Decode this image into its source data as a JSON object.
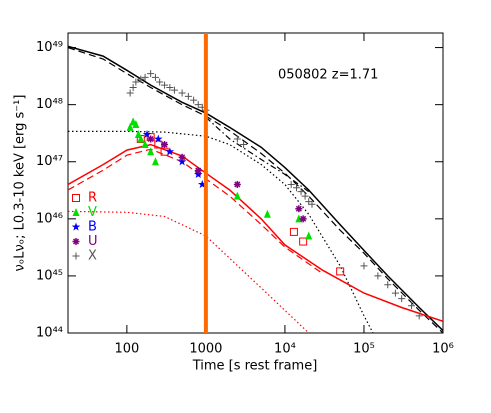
{
  "chart_data": {
    "type": "scatter",
    "xlog": true,
    "ylog": true,
    "xlabel": "Time [s rest frame]",
    "ylabel": "νₒLνₒ;  L0.3-10 keV [erg s⁻¹]",
    "annotation": "050802   z=1.71",
    "xlim": [
      18,
      1000000
    ],
    "ylim": [
      1e+44,
      1.8e+49
    ],
    "xticks": [
      100,
      1000,
      {
        "value": 10000,
        "label": "10⁴"
      },
      {
        "value": 100000,
        "label": "10⁵"
      },
      {
        "value": 1000000,
        "label": "10⁶"
      }
    ],
    "yticks": [
      {
        "value": 1e+44,
        "label": "10⁴⁴"
      },
      {
        "value": 1e+45,
        "label": "10⁴⁵"
      },
      {
        "value": 1e+46,
        "label": "10⁴⁶"
      },
      {
        "value": 1e+47,
        "label": "10⁴⁷"
      },
      {
        "value": 1e+48,
        "label": "10⁴⁸"
      },
      {
        "value": 1e+49,
        "label": "10⁴⁹"
      }
    ],
    "vline": {
      "x": 1000,
      "color": "#ff6a00"
    },
    "series": [
      {
        "name": "R",
        "color": "#ff0000",
        "marker": "square",
        "x": [
          150,
          200,
          250,
          300,
          13000,
          17000,
          50000
        ],
        "values": [
          2.5e+47,
          2.7e+47,
          2e+47,
          1.5e+47,
          5.9e+45,
          4e+45,
          1.2e+45
        ]
      },
      {
        "name": "V",
        "color": "#00e000",
        "marker": "triangle",
        "x": [
          110,
          120,
          130,
          140,
          150,
          170,
          200,
          230,
          2500,
          6000,
          15000,
          20000
        ],
        "values": [
          4e+47,
          5e+47,
          4.5e+47,
          3e+47,
          2.5e+47,
          2e+47,
          1.5e+47,
          1e+47,
          2.5e+46,
          1.2e+46,
          1e+46,
          5e+45
        ]
      },
      {
        "name": "B",
        "color": "#0000ff",
        "marker": "star",
        "x": [
          180,
          250,
          350,
          500,
          800,
          900
        ],
        "values": [
          3e+47,
          2.5e+47,
          1.5e+47,
          1e+47,
          6e+46,
          4e+46
        ]
      },
      {
        "name": "U",
        "color": "#800080",
        "marker": "asterisk",
        "x": [
          200,
          300,
          500,
          800,
          2500,
          15000,
          17000
        ],
        "values": [
          2.5e+47,
          2e+47,
          1.2e+47,
          7e+46,
          4e+46,
          1.5e+46,
          1e+46
        ]
      },
      {
        "name": "X",
        "color": "#555555",
        "marker": "cross",
        "x": [
          110,
          120,
          130,
          150,
          170,
          200,
          230,
          260,
          300,
          350,
          400,
          500,
          600,
          700,
          800,
          900,
          1000,
          2500,
          3000,
          12000,
          14000,
          16000,
          18000,
          20000,
          22000,
          100000,
          150000,
          200000,
          250000,
          300000,
          400000,
          500000
        ],
        "values": [
          1.6e+48,
          2e+48,
          2.5e+48,
          2.8e+48,
          3e+48,
          3.5e+48,
          3e+48,
          2.5e+48,
          2.2e+48,
          2e+48,
          1.8e+48,
          1.6e+48,
          1.4e+48,
          1.2e+48,
          1e+48,
          9e+47,
          8e+47,
          2.5e+47,
          2e+47,
          4e+46,
          3.5e+46,
          3e+46,
          2.5e+46,
          2e+46,
          1.8e+46,
          1.5e+45,
          1e+45,
          7e+44,
          5e+44,
          4e+44,
          3e+44,
          2e+44
        ]
      },
      {
        "color": "#000000",
        "dash": "solid",
        "x": [
          18,
          50,
          100,
          200,
          500,
          1000,
          2000,
          5000,
          10000,
          20000,
          50000,
          100000,
          200000,
          500000,
          1000000
        ],
        "values": [
          1.05e+49,
          7.1e+48,
          4e+48,
          2.2e+48,
          1.1e+48,
          7.1e+47,
          4e+47,
          1.8e+47,
          7.9e+46,
          3.2e+46,
          7.9e+45,
          2.8e+45,
          1e+45,
          2.8e+44,
          1.1e+44
        ]
      },
      {
        "color": "#000000",
        "dash": "dashed",
        "x": [
          18,
          50,
          100,
          200,
          500,
          1000,
          2000,
          5000,
          10000,
          20000,
          50000,
          100000,
          200000,
          500000,
          1000000
        ],
        "values": [
          1e+49,
          6.3e+48,
          3.5e+48,
          2e+48,
          1e+48,
          6.3e+47,
          3.5e+47,
          1.4e+47,
          6.3e+46,
          2.5e+46,
          6.3e+45,
          2.5e+45,
          8.9e+44,
          2.5e+44,
          1e+44
        ]
      },
      {
        "color": "#000000",
        "dash": "dotted",
        "x": [
          18,
          100,
          300,
          1000,
          2000,
          5000,
          10000,
          20000,
          50000,
          100000,
          130000
        ],
        "values": [
          3.4e+47,
          3.4e+47,
          3.3e+47,
          2.8e+47,
          2e+47,
          9e+46,
          4e+46,
          1.2e+46,
          1.5e+45,
          2e+44,
          1e+44
        ]
      },
      {
        "color": "#000000",
        "dash": "dashdot",
        "x": [
          1000,
          2000,
          5000,
          10000,
          20000
        ],
        "values": [
          6e+47,
          2.5e+47,
          1.1e+47,
          6e+46,
          3e+46
        ]
      },
      {
        "color": "#ff0000",
        "dash": "solid",
        "x": [
          18,
          50,
          100,
          200,
          500,
          1000,
          2000,
          5000,
          10000,
          30000,
          100000,
          300000,
          1000000
        ],
        "values": [
          4e+46,
          8.9e+46,
          1.6e+47,
          2e+47,
          1.26e+47,
          6.3e+46,
          3.2e+46,
          1e+46,
          3.5e+45,
          1.26e+45,
          5e+44,
          2.8e+44,
          1.6e+44
        ]
      },
      {
        "color": "#ff0000",
        "dash": "dashed",
        "x": [
          18,
          50,
          100,
          200,
          500,
          1000,
          2000,
          5000,
          10000,
          30000
        ],
        "values": [
          3.2e+46,
          7.1e+46,
          1.3e+47,
          1.66e+47,
          1e+47,
          5e+46,
          2.5e+46,
          8e+45,
          3.2e+45,
          1.1e+45
        ]
      },
      {
        "color": "#ff0000",
        "dash": "dotted",
        "x": [
          18,
          100,
          300,
          1000,
          3000,
          10000,
          20000
        ],
        "values": [
          1.35e+46,
          1.3e+46,
          1.1e+46,
          5e+45,
          1.2e+45,
          2.5e+44,
          1e+44
        ]
      }
    ]
  }
}
